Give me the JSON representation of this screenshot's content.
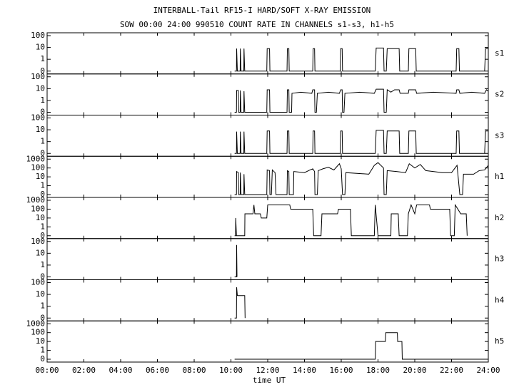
{
  "chart_data": {
    "type": "line",
    "title": "INTERBALL-Tail RF15-I HARD/SOFT X-RAY EMISSION",
    "subtitle": "SOW 00:00 24:00 990510  COUNT RATE IN CHANNELS s1-s3, h1-h5",
    "xlabel": "time UT",
    "xlim": [
      0,
      24
    ],
    "xticks": [
      {
        "value": 0,
        "label": "00:00"
      },
      {
        "value": 2,
        "label": "02:00"
      },
      {
        "value": 4,
        "label": "04:00"
      },
      {
        "value": 6,
        "label": "06:00"
      },
      {
        "value": 8,
        "label": "08:00"
      },
      {
        "value": 10,
        "label": "10:00"
      },
      {
        "value": 12,
        "label": "12:00"
      },
      {
        "value": 14,
        "label": "14:00"
      },
      {
        "value": 16,
        "label": "16:00"
      },
      {
        "value": 18,
        "label": "18:00"
      },
      {
        "value": 20,
        "label": "20:00"
      },
      {
        "value": 22,
        "label": "22:00"
      },
      {
        "value": 24,
        "label": "24:00"
      }
    ],
    "yscale": "log",
    "color": "#000000",
    "series": [
      {
        "name": "s1",
        "ylim": [
          0,
          100
        ],
        "yticks": [
          0,
          1,
          10,
          100
        ],
        "x": [
          10.2,
          10.3,
          10.31,
          10.35,
          10.5,
          10.51,
          10.55,
          10.7,
          10.71,
          10.75,
          11.95,
          11.97,
          12.1,
          12.12,
          13.05,
          13.07,
          13.15,
          13.17,
          14.45,
          14.47,
          14.55,
          14.57,
          15.95,
          15.97,
          16.05,
          16.07,
          17.85,
          17.9,
          18.3,
          18.33,
          18.45,
          18.5,
          19.15,
          19.18,
          19.65,
          19.68,
          20.05,
          20.08,
          22.25,
          22.28,
          22.4,
          22.43,
          23.8,
          23.85,
          24
        ],
        "values": [
          0,
          0,
          8,
          0,
          0,
          8,
          0,
          0,
          8,
          0,
          0,
          8,
          8,
          0,
          0,
          8,
          8,
          0,
          0,
          8,
          8,
          0,
          0,
          8,
          8,
          0,
          0,
          9,
          9,
          0,
          0,
          8,
          8,
          0,
          0,
          8,
          8,
          0,
          0,
          8,
          8,
          0,
          0,
          8,
          8
        ]
      },
      {
        "name": "s2",
        "ylim": [
          0,
          100
        ],
        "yticks": [
          0,
          1,
          10,
          100
        ],
        "x": [
          10.2,
          10.3,
          10.31,
          10.4,
          10.42,
          10.5,
          10.51,
          10.55,
          10.7,
          10.71,
          10.75,
          11.95,
          11.97,
          12.1,
          12.12,
          13.05,
          13.07,
          13.15,
          13.17,
          13.3,
          13.32,
          13.8,
          14.4,
          14.45,
          14.55,
          14.57,
          14.65,
          14.7,
          15.3,
          15.9,
          15.97,
          16.05,
          16.07,
          16.15,
          16.2,
          17.0,
          17.8,
          17.9,
          18.3,
          18.33,
          18.45,
          18.5,
          18.7,
          18.9,
          19.15,
          19.2,
          19.65,
          19.68,
          20.05,
          20.1,
          21.0,
          22.25,
          22.28,
          22.4,
          22.45,
          23.1,
          23.8,
          23.9,
          24
        ],
        "values": [
          0,
          0,
          7,
          7,
          0,
          0,
          7,
          0,
          0,
          6,
          0,
          0,
          8,
          8,
          0,
          0,
          8,
          8,
          0,
          0,
          4,
          5,
          4,
          8,
          8,
          0,
          0,
          4,
          5,
          4,
          8,
          8,
          0,
          0,
          4,
          5,
          4,
          9,
          9,
          0,
          0,
          8,
          5,
          8,
          8,
          4,
          4,
          8,
          8,
          4,
          5,
          4,
          8,
          8,
          4,
          5,
          4,
          8,
          6
        ]
      },
      {
        "name": "s3",
        "ylim": [
          0,
          100
        ],
        "yticks": [
          0,
          1,
          10,
          100
        ],
        "x": [
          10.2,
          10.3,
          10.31,
          10.35,
          10.5,
          10.51,
          10.55,
          10.7,
          10.71,
          10.75,
          11.95,
          11.97,
          12.1,
          12.12,
          13.05,
          13.07,
          13.15,
          13.17,
          14.45,
          14.47,
          14.55,
          14.57,
          15.95,
          15.97,
          16.05,
          16.07,
          17.85,
          17.9,
          18.3,
          18.33,
          18.45,
          18.5,
          19.15,
          19.18,
          19.65,
          19.68,
          20.05,
          20.08,
          22.25,
          22.28,
          22.4,
          22.43,
          23.8,
          23.85,
          24
        ],
        "values": [
          0,
          0,
          7,
          0,
          0,
          7,
          0,
          0,
          7,
          0,
          0,
          8,
          8,
          0,
          0,
          8,
          8,
          0,
          0,
          8,
          8,
          0,
          0,
          8,
          8,
          0,
          0,
          9,
          9,
          0,
          0,
          8,
          8,
          0,
          0,
          8,
          8,
          0,
          0,
          8,
          8,
          0,
          0,
          8,
          8
        ]
      },
      {
        "name": "h1",
        "ylim": [
          0,
          1000
        ],
        "yticks": [
          0,
          1,
          10,
          100,
          1000
        ],
        "x": [
          10.2,
          10.3,
          10.31,
          10.4,
          10.42,
          10.5,
          10.51,
          10.55,
          10.7,
          10.71,
          10.75,
          11.95,
          11.97,
          12.1,
          12.12,
          12.2,
          12.25,
          12.4,
          12.45,
          13.05,
          13.07,
          13.15,
          13.17,
          13.4,
          13.42,
          14.0,
          14.3,
          14.45,
          14.55,
          14.57,
          14.7,
          14.75,
          15.0,
          15.3,
          15.6,
          15.9,
          16.0,
          16.07,
          16.2,
          16.25,
          17.5,
          17.8,
          18.0,
          18.3,
          18.33,
          18.45,
          18.5,
          19.0,
          19.5,
          19.7,
          20.0,
          20.3,
          20.6,
          21.0,
          21.5,
          22.0,
          22.3,
          22.45,
          22.6,
          22.65,
          23.2,
          23.5,
          23.8,
          24
        ],
        "values": [
          0,
          0,
          40,
          30,
          0,
          0,
          30,
          0,
          0,
          20,
          0,
          0,
          60,
          50,
          0,
          0,
          60,
          30,
          0,
          0,
          50,
          40,
          0,
          0,
          40,
          30,
          60,
          80,
          40,
          0,
          0,
          50,
          80,
          120,
          60,
          300,
          80,
          0,
          0,
          30,
          20,
          200,
          400,
          100,
          0,
          0,
          50,
          40,
          30,
          300,
          100,
          250,
          50,
          40,
          30,
          30,
          200,
          0,
          0,
          20,
          20,
          50,
          60,
          200
        ]
      },
      {
        "name": "h2",
        "ylim": [
          0,
          1000
        ],
        "yticks": [
          0,
          1,
          10,
          100,
          1000
        ],
        "x": [
          10.2,
          10.25,
          10.26,
          10.3,
          10.75,
          10.76,
          11.2,
          11.25,
          11.3,
          11.6,
          11.65,
          11.95,
          12.0,
          13.2,
          13.25,
          14.45,
          14.5,
          14.9,
          14.95,
          15.8,
          15.85,
          16.5,
          16.55,
          17.8,
          17.85,
          18.0,
          18.7,
          18.72,
          19.1,
          19.15,
          19.6,
          19.65,
          19.8,
          20.0,
          20.1,
          20.8,
          20.85,
          21.9,
          21.95,
          22.15,
          22.2,
          22.5,
          22.8,
          22.85
        ],
        "values": [
          0,
          0,
          10,
          0,
          0,
          30,
          30,
          300,
          30,
          30,
          10,
          10,
          300,
          300,
          100,
          100,
          0,
          0,
          30,
          30,
          100,
          100,
          0,
          0,
          300,
          0,
          0,
          30,
          30,
          0,
          0,
          30,
          300,
          30,
          300,
          300,
          100,
          100,
          0,
          0,
          300,
          30,
          30,
          0
        ]
      },
      {
        "name": "h3",
        "ylim": [
          0,
          100
        ],
        "yticks": [
          0,
          1,
          10,
          100
        ],
        "x": [
          10.2,
          10.3,
          10.31,
          10.33
        ],
        "values": [
          0,
          0,
          50,
          0
        ]
      },
      {
        "name": "h4",
        "ylim": [
          0,
          100
        ],
        "yticks": [
          0,
          1,
          10,
          100
        ],
        "x": [
          10.2,
          10.3,
          10.31,
          10.35,
          10.75,
          10.77
        ],
        "values": [
          0,
          0,
          40,
          8,
          8,
          0
        ]
      },
      {
        "name": "h5",
        "ylim": [
          0,
          1000
        ],
        "yticks": [
          0,
          1,
          10,
          100,
          1000
        ],
        "x": [
          10.2,
          17.85,
          17.87,
          18.4,
          18.42,
          19.05,
          19.07,
          19.3,
          19.32,
          24
        ],
        "values": [
          0,
          0,
          10,
          10,
          100,
          100,
          10,
          10,
          0,
          0
        ]
      }
    ]
  }
}
